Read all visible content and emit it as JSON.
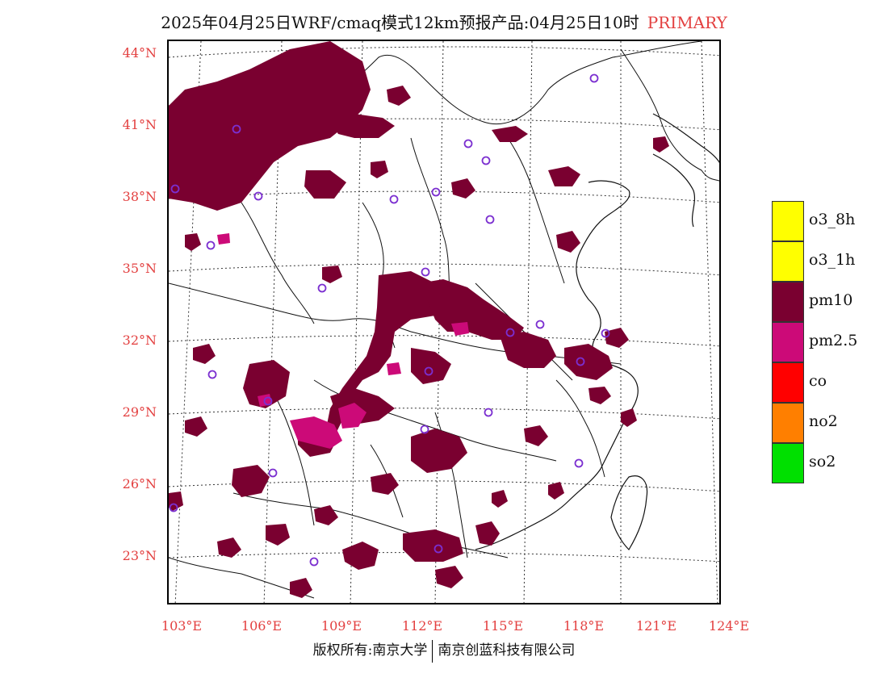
{
  "title": {
    "main": "2025年04月25日WRF/cmaq模式12km预报产品:04月25日10时",
    "product": "PRIMARY"
  },
  "axes": {
    "lat_labels": [
      "44°N",
      "41°N",
      "38°N",
      "35°N",
      "32°N",
      "29°N",
      "26°N",
      "23°N"
    ],
    "lat_values": [
      44,
      41,
      38,
      35,
      32,
      29,
      26,
      23
    ],
    "lon_labels": [
      "103°E",
      "106°E",
      "109°E",
      "112°E",
      "115°E",
      "118°E",
      "121°E",
      "124°E"
    ],
    "lon_values": [
      103,
      106,
      109,
      112,
      115,
      118,
      121,
      124
    ]
  },
  "legend": {
    "items": [
      {
        "label": "o3_8h",
        "color": "#ffff00"
      },
      {
        "label": "o3_1h",
        "color": "#ffff00"
      },
      {
        "label": "pm10",
        "color": "#7a0030"
      },
      {
        "label": "pm2.5",
        "color": "#cc0a78"
      },
      {
        "label": "co",
        "color": "#ff0000"
      },
      {
        "label": "no2",
        "color": "#ff7f00"
      },
      {
        "label": "so2",
        "color": "#00e000"
      }
    ]
  },
  "footer": {
    "left": "版权所有:南京大学",
    "right": "南京创蓝科技有限公司"
  },
  "map_colors": {
    "pm10": "#7a0030",
    "pm25": "#cc0a78",
    "station": "#7b2fd0"
  }
}
